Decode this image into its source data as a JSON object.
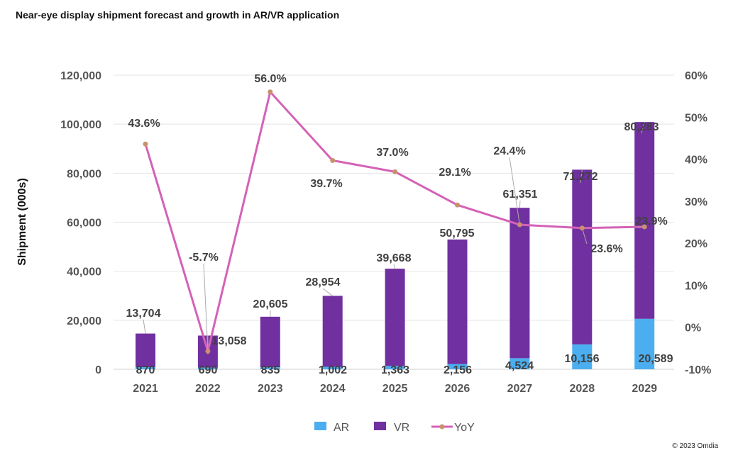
{
  "title": "Near-eye display shipment forecast and growth in AR/VR application",
  "credit": "© 2023 Omdia",
  "chart_data": {
    "type": "bar",
    "stacked": true,
    "title": "Near-eye display shipment forecast and growth in AR/VR application",
    "ylabel": "Shipment (000s)",
    "xlabel": "",
    "categories": [
      "2021",
      "2022",
      "2023",
      "2024",
      "2025",
      "2026",
      "2027",
      "2028",
      "2029"
    ],
    "series": [
      {
        "name": "AR",
        "type": "bar",
        "axis": "left",
        "color": "#4baef0",
        "values": [
          870,
          690,
          835,
          1002,
          1363,
          2156,
          4524,
          10156,
          20589
        ],
        "labels": [
          "870",
          "690",
          "835",
          "1,002",
          "1,363",
          "2,156",
          "4,524",
          "10,156",
          "20,589"
        ]
      },
      {
        "name": "VR",
        "type": "bar",
        "axis": "left",
        "color": "#7030a0",
        "values": [
          13704,
          13058,
          20605,
          28954,
          39668,
          50795,
          61351,
          71272,
          80283
        ],
        "labels": [
          "13,704",
          "13,058",
          "20,605",
          "28,954",
          "39,668",
          "50,795",
          "61,351",
          "71,272",
          "80,283"
        ]
      },
      {
        "name": "YoY",
        "type": "line",
        "axis": "right",
        "color": "#d462b6",
        "marker_color": "#c8906e",
        "values": [
          43.6,
          -5.7,
          56.0,
          39.7,
          37.0,
          29.1,
          24.4,
          23.6,
          23.9
        ],
        "labels": [
          "43.6%",
          "-5.7%",
          "56.0%",
          "39.7%",
          "37.0%",
          "29.1%",
          "24.4%",
          "23.6%",
          "23.9%"
        ]
      }
    ],
    "ylim": [
      0,
      120000
    ],
    "yticks": [
      "0",
      "20,000",
      "40,000",
      "60,000",
      "80,000",
      "100,000",
      "120,000"
    ],
    "y2lim": [
      -10,
      60
    ],
    "y2ticks": [
      "-10%",
      "0%",
      "10%",
      "20%",
      "30%",
      "40%",
      "50%",
      "60%"
    ],
    "grid": true,
    "legend_position": "bottom"
  }
}
